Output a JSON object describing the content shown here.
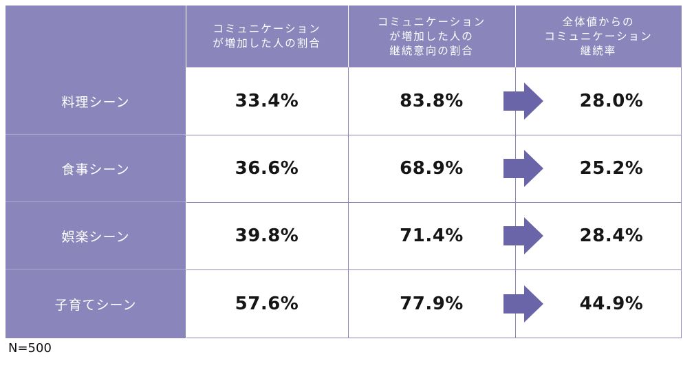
{
  "chart_data": {
    "type": "table",
    "corner": "",
    "columns": [
      "コミュニケーション\nが増加した人の割合",
      "コミュニケーション\nが増加した人の\n継続意向の割合",
      "全体値からの\nコミュニケーション\n継続率"
    ],
    "rows": [
      {
        "label": "料理シーン",
        "values": [
          "33.4%",
          "83.8%",
          "28.0%"
        ]
      },
      {
        "label": "食事シーン",
        "values": [
          "36.6%",
          "68.9%",
          "25.2%"
        ]
      },
      {
        "label": "娯楽シーン",
        "values": [
          "39.8%",
          "71.4%",
          "28.4%"
        ]
      },
      {
        "label": "子育てシーン",
        "values": [
          "57.6%",
          "77.9%",
          "44.9%"
        ]
      }
    ],
    "arrow_color": "#6a64a8",
    "header_color": "#8a86bb"
  },
  "note": "N=500"
}
